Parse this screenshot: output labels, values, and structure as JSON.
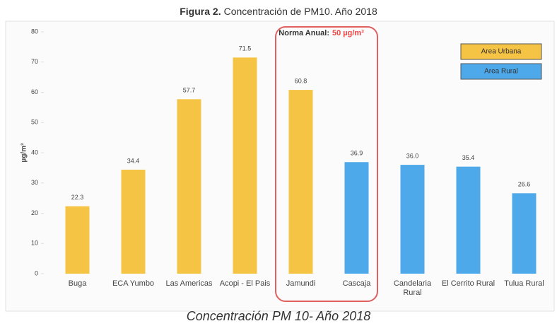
{
  "chart_data": {
    "type": "bar",
    "title_prefix": "Figura 2.",
    "title": "Concentración de PM10. Año 2018",
    "caption": "Concentración PM 10- Año 2018",
    "y_label": "µg/m³",
    "annotation": {
      "label": "Norma Anual:",
      "value": "50 µg/m³"
    },
    "categories": [
      "Buga",
      "ECA Yumbo",
      "Las Americas",
      "Acopi - El Pais",
      "Jamundi",
      "Cascaja",
      "Candelaria Rural",
      "El Cerrito Rural",
      "Tulua Rural"
    ],
    "series": [
      {
        "name": "Area Urbana",
        "color": "#f6c445",
        "values": [
          22.3,
          34.4,
          57.7,
          71.5,
          60.8,
          null,
          null,
          null,
          null
        ]
      },
      {
        "name": "Area Rural",
        "color": "#4ea9ea",
        "values": [
          null,
          null,
          null,
          null,
          null,
          36.9,
          36.0,
          35.4,
          26.6
        ],
        "value_labels": [
          null,
          null,
          null,
          null,
          null,
          "36.9",
          "36.0",
          "35.4",
          "26.6"
        ]
      }
    ],
    "ylim": [
      0,
      80
    ],
    "yticks": [
      0,
      10,
      20,
      30,
      40,
      50,
      60,
      70,
      80
    ],
    "legend": "upper right"
  }
}
